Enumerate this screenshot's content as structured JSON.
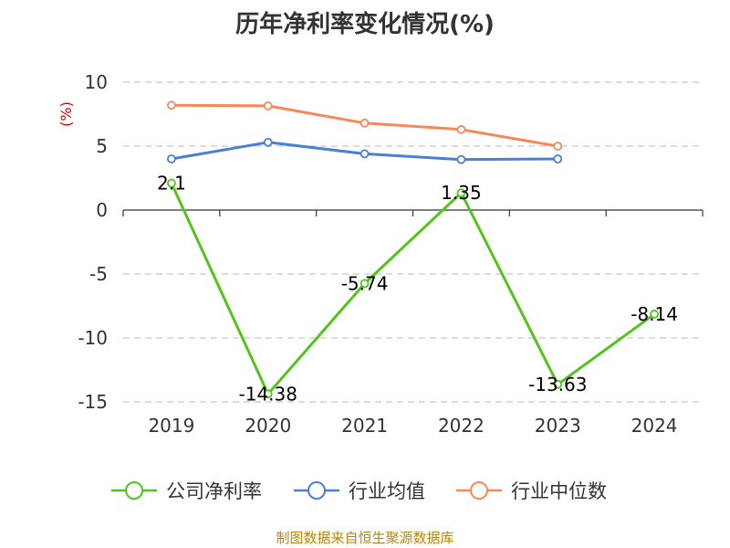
{
  "chart_data": {
    "type": "line",
    "title": "历年净利率变化情况(%)",
    "ylabel": "(%)",
    "categories": [
      "2019",
      "2020",
      "2021",
      "2022",
      "2023",
      "2024"
    ],
    "ylim": [
      -15,
      10
    ],
    "yticks": [
      10,
      5,
      0,
      -5,
      -10,
      -15
    ],
    "grid": true,
    "legend_position": "bottom",
    "series": [
      {
        "name": "公司净利率",
        "color": "#52c41a",
        "values": [
          2.1,
          -14.38,
          -5.74,
          1.35,
          -13.63,
          -8.14
        ],
        "labels": [
          "2.1",
          "-14.38",
          "-5.74",
          "1.35",
          "-13.63",
          "-8.14"
        ]
      },
      {
        "name": "行业均值",
        "color": "#4a7fd8",
        "values": [
          4.0,
          5.3,
          4.4,
          3.95,
          4.0,
          null
        ]
      },
      {
        "name": "行业中位数",
        "color": "#f5895a",
        "values": [
          8.2,
          8.15,
          6.8,
          6.3,
          5.0,
          null
        ]
      }
    ]
  },
  "source_text": "制图数据来自恒生聚源数据库"
}
